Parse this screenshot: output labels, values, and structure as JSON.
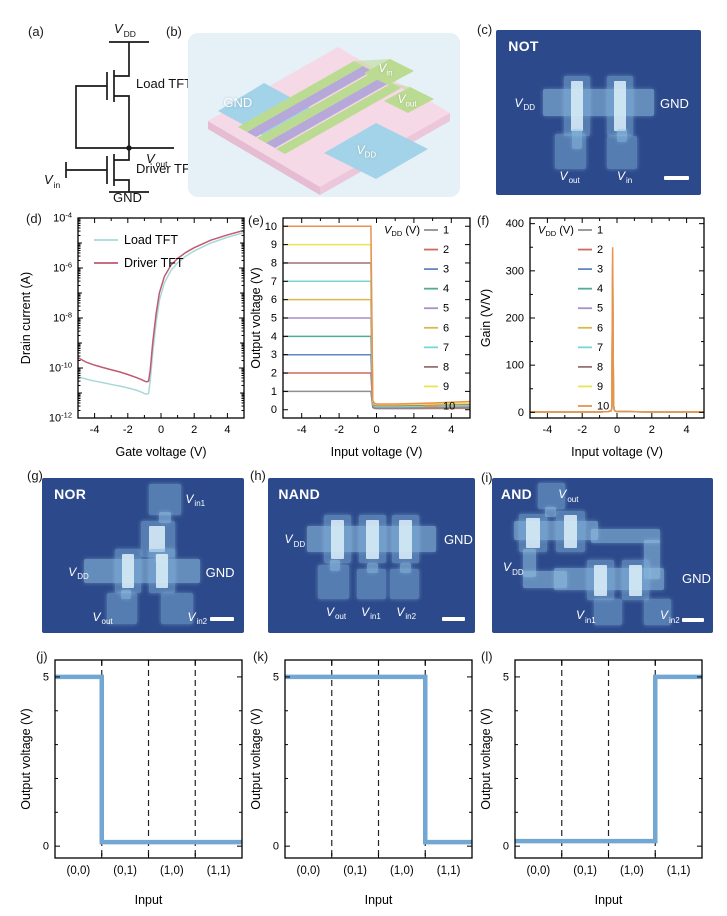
{
  "panels": {
    "a": {
      "tag": "(a)",
      "labels": {
        "vdd": {
          "m": "V",
          "s": "DD"
        },
        "load": "Load TFT",
        "vout": {
          "m": "V",
          "s": "out"
        },
        "driver": "Driver TFT",
        "vin": {
          "m": "V",
          "s": "in"
        },
        "gnd": "GND"
      }
    },
    "b": {
      "tag": "(b)",
      "labels": {
        "gnd": "GND",
        "vin": {
          "m": "V",
          "s": "in"
        },
        "vout": {
          "m": "V",
          "s": "out"
        },
        "vdd": {
          "m": "V",
          "s": "DD"
        }
      }
    },
    "c": {
      "tag": "(c)",
      "title": "NOT",
      "labels": {
        "vdd": {
          "m": "V",
          "s": "DD"
        },
        "gnd": "GND",
        "vout": {
          "m": "V",
          "s": "out"
        },
        "vin": {
          "m": "V",
          "s": "in"
        }
      }
    },
    "d": {
      "tag": "(d)"
    },
    "e": {
      "tag": "(e)"
    },
    "f": {
      "tag": "(f)"
    },
    "g": {
      "tag": "(g)",
      "title": "NOR",
      "labels": {
        "vin1": {
          "m": "V",
          "s": "in1"
        },
        "vdd": {
          "m": "V",
          "s": "DD"
        },
        "gnd": "GND",
        "vout": {
          "m": "V",
          "s": "out"
        },
        "vin2": {
          "m": "V",
          "s": "in2"
        }
      }
    },
    "h": {
      "tag": "(h)",
      "title": "NAND",
      "labels": {
        "vdd": {
          "m": "V",
          "s": "DD"
        },
        "gnd": "GND",
        "vout": {
          "m": "V",
          "s": "out"
        },
        "vin1": {
          "m": "V",
          "s": "in1"
        },
        "vin2": {
          "m": "V",
          "s": "in2"
        }
      }
    },
    "i": {
      "tag": "(i)",
      "title": "AND",
      "labels": {
        "vout": {
          "m": "V",
          "s": "out"
        },
        "vdd": {
          "m": "V",
          "s": "DD"
        },
        "gnd": "GND",
        "vin1": {
          "m": "V",
          "s": "in1"
        },
        "vin2": {
          "m": "V",
          "s": "in2"
        }
      }
    },
    "j": {
      "tag": "(j)"
    },
    "k": {
      "tag": "(k)"
    },
    "l": {
      "tag": "(l)"
    }
  },
  "chart_data": [
    {
      "id": "d",
      "type": "line",
      "logy": true,
      "xlabel": "Gate voltage (V)",
      "ylabel": "Drain current (A)",
      "xlim": [
        -5,
        5
      ],
      "xticks": [
        -4,
        -2,
        0,
        2,
        4
      ],
      "xminor": [
        -5,
        -3,
        -1,
        1,
        3,
        5
      ],
      "ylim_exp": [
        -12,
        -4
      ],
      "ytick_exps": [
        -4,
        -6,
        -8,
        -10,
        -12
      ],
      "legend": {
        "pos": "series"
      },
      "x": [
        -5,
        -4.5,
        -4,
        -3.5,
        -3,
        -2.5,
        -2,
        -1.5,
        -1.2,
        -1,
        -0.85,
        -0.75,
        -0.65,
        -0.5,
        -0.3,
        -0.1,
        0.2,
        0.6,
        1,
        1.5,
        2,
        3,
        4,
        5
      ],
      "series": [
        {
          "name": "Load TFT",
          "color": "#a8d8da",
          "y": [
            4.5e-11,
            3.6e-11,
            3e-11,
            2.6e-11,
            2.2e-11,
            1.9e-11,
            1.6e-11,
            1.3e-11,
            1.1e-11,
            9.5e-12,
            9e-12,
            9.5e-12,
            3e-11,
            4e-10,
            6e-09,
            5e-08,
            2.5e-07,
            8e-07,
            1.6e-06,
            3e-06,
            4.8e-06,
            1e-05,
            1.7e-05,
            2.6e-05
          ]
        },
        {
          "name": "Driver TFT",
          "color": "#bf5a70",
          "y": [
            2.6e-10,
            1.7e-10,
            1.3e-10,
            1.05e-10,
            8.5e-11,
            7e-11,
            5.5e-11,
            4.2e-11,
            3.5e-11,
            3e-11,
            2.8e-11,
            3e-11,
            8e-11,
            1e-09,
            1.4e-08,
            1e-07,
            4.5e-07,
            1.3e-06,
            2.4e-06,
            4.2e-06,
            6.5e-06,
            1.3e-05,
            2.1e-05,
            3.2e-05
          ]
        }
      ]
    },
    {
      "id": "e",
      "type": "line",
      "xlabel": "Input voltage (V)",
      "ylabel": "Output voltage (V)",
      "xlim": [
        -5,
        5
      ],
      "xticks": [
        -4,
        -2,
        0,
        2,
        4
      ],
      "xminor": [
        -5,
        -3,
        -1,
        1,
        3,
        5
      ],
      "ylim": [
        -0.45,
        10.45
      ],
      "yticks": [
        0,
        1,
        2,
        3,
        4,
        5,
        6,
        7,
        8,
        9,
        10
      ],
      "legend": {
        "pos": "right",
        "title": {
          "main": "V",
          "sub": "DD",
          "rest": " (V)"
        }
      },
      "x": [
        -5,
        -4,
        -3,
        -2,
        -1,
        -0.6,
        -0.45,
        -0.35,
        -0.3,
        -0.25,
        -0.2,
        -0.1,
        0,
        0.5,
        1,
        2,
        3,
        4,
        5
      ],
      "series": [
        {
          "name": "1",
          "color": "#909090",
          "y": [
            1,
            1,
            1,
            1,
            1,
            1,
            1,
            1,
            1,
            0.55,
            0.12,
            0.07,
            0.06,
            0.06,
            0.06,
            0.06,
            0.07,
            0.07,
            0.08
          ]
        },
        {
          "name": "2",
          "color": "#cf6a5d",
          "y": [
            2,
            2,
            2,
            2,
            2,
            2,
            2,
            2,
            2,
            1.1,
            0.16,
            0.1,
            0.09,
            0.09,
            0.09,
            0.1,
            0.1,
            0.11,
            0.12
          ]
        },
        {
          "name": "3",
          "color": "#6286c2",
          "y": [
            3,
            3,
            3,
            3,
            3,
            3,
            3,
            3,
            3,
            1.65,
            0.2,
            0.13,
            0.11,
            0.11,
            0.11,
            0.12,
            0.13,
            0.14,
            0.15
          ]
        },
        {
          "name": "4",
          "color": "#52ab96",
          "y": [
            4,
            4,
            4,
            4,
            4,
            4,
            4,
            4,
            4,
            2.2,
            0.24,
            0.15,
            0.13,
            0.13,
            0.13,
            0.14,
            0.15,
            0.16,
            0.17
          ]
        },
        {
          "name": "5",
          "color": "#a78fca",
          "y": [
            5,
            5,
            5,
            5,
            5,
            5,
            5,
            5,
            5,
            2.75,
            0.28,
            0.17,
            0.15,
            0.15,
            0.15,
            0.16,
            0.17,
            0.18,
            0.2
          ]
        },
        {
          "name": "6",
          "color": "#d7b94e",
          "y": [
            6,
            6,
            6,
            6,
            6,
            6,
            6,
            6,
            6,
            3.3,
            0.32,
            0.2,
            0.18,
            0.18,
            0.18,
            0.19,
            0.2,
            0.22,
            0.23
          ]
        },
        {
          "name": "7",
          "color": "#7ad6d6",
          "y": [
            7,
            7,
            7,
            7,
            7,
            7,
            7,
            7,
            7,
            3.85,
            0.36,
            0.22,
            0.2,
            0.2,
            0.2,
            0.21,
            0.23,
            0.25,
            0.26
          ]
        },
        {
          "name": "8",
          "color": "#9b7070",
          "y": [
            8,
            8,
            8,
            8,
            8,
            8,
            8,
            8,
            8,
            4.4,
            0.4,
            0.26,
            0.24,
            0.23,
            0.23,
            0.25,
            0.27,
            0.29,
            0.3
          ]
        },
        {
          "name": "9",
          "color": "#e9e455",
          "y": [
            9,
            9,
            9,
            9,
            9,
            9,
            9,
            9,
            9,
            4.95,
            0.45,
            0.3,
            0.28,
            0.27,
            0.27,
            0.29,
            0.31,
            0.33,
            0.35
          ]
        },
        {
          "name": "10",
          "color": "#e8924f",
          "y": [
            10,
            10,
            10,
            10,
            10,
            10,
            10,
            10,
            10,
            5.5,
            0.5,
            0.35,
            0.32,
            0.31,
            0.31,
            0.34,
            0.37,
            0.41,
            0.45
          ]
        }
      ]
    },
    {
      "id": "f",
      "type": "line",
      "xlabel": "Input voltage (V)",
      "ylabel": "Gain (V/V)",
      "xlim": [
        -5,
        5
      ],
      "xticks": [
        -4,
        -2,
        0,
        2,
        4
      ],
      "xminor": [
        -5,
        -3,
        -1,
        1,
        3,
        5
      ],
      "ylim": [
        -12,
        412
      ],
      "yticks": [
        0,
        100,
        200,
        300,
        400
      ],
      "yminor": [
        50,
        150,
        250,
        350
      ],
      "legend": {
        "pos": "left",
        "title": {
          "main": "V",
          "sub": "DD",
          "rest": " (V)"
        }
      },
      "x": [
        -5,
        -3,
        -1,
        -0.5,
        -0.35,
        -0.3,
        -0.25,
        -0.2,
        -0.15,
        -0.05,
        0.5,
        2,
        5
      ],
      "series": [
        {
          "name": "1",
          "color": "#909090",
          "y": [
            1,
            1,
            1,
            1.5,
            3,
            8,
            55,
            16,
            4,
            2,
            1.5,
            1,
            1
          ]
        },
        {
          "name": "2",
          "color": "#cf6a5d",
          "y": [
            1,
            1,
            1,
            1.5,
            3,
            8,
            110,
            16,
            4,
            2,
            1.5,
            1,
            1
          ]
        },
        {
          "name": "3",
          "color": "#6286c2",
          "y": [
            1,
            1,
            1,
            1.5,
            3,
            8,
            160,
            16,
            4,
            2,
            1.5,
            1,
            1
          ]
        },
        {
          "name": "4",
          "color": "#52ab96",
          "y": [
            1,
            1,
            1,
            1.5,
            3,
            8,
            200,
            16,
            4,
            2,
            1.5,
            1,
            1
          ]
        },
        {
          "name": "5",
          "color": "#a78fca",
          "y": [
            1,
            1,
            1,
            1.5,
            3,
            8,
            240,
            16,
            4,
            2,
            1.5,
            1,
            1
          ]
        },
        {
          "name": "6",
          "color": "#d7b94e",
          "y": [
            1,
            1,
            1,
            1.5,
            3,
            8,
            270,
            16,
            4,
            2,
            1.5,
            1,
            1
          ]
        },
        {
          "name": "7",
          "color": "#7ad6d6",
          "y": [
            1,
            1,
            1,
            1.5,
            3,
            8,
            295,
            16,
            4,
            2,
            1.5,
            1,
            1
          ]
        },
        {
          "name": "8",
          "color": "#9b7070",
          "y": [
            1,
            1,
            1,
            1.5,
            3,
            8,
            315,
            16,
            4,
            2,
            1.5,
            1,
            1
          ]
        },
        {
          "name": "9",
          "color": "#e9e455",
          "y": [
            1,
            1,
            1,
            1.5,
            3,
            8,
            335,
            16,
            4,
            2,
            1.5,
            1,
            1
          ]
        },
        {
          "name": "10",
          "color": "#e8924f",
          "y": [
            1,
            1,
            1,
            1.5,
            3,
            8,
            350,
            16,
            4,
            2,
            1.5,
            1,
            1
          ]
        }
      ]
    },
    {
      "id": "j",
      "type": "step",
      "color": "#72a7d3",
      "xlabel": "Input",
      "ylabel": "Output voltage (V)",
      "categories": [
        "(0,0)",
        "(0,1)",
        "(1,0)",
        "(1,1)"
      ],
      "values": [
        5,
        0.12,
        0.12,
        0.12
      ],
      "ylim": [
        -0.35,
        5.5
      ],
      "yticks": [
        0,
        5
      ],
      "yminor": [
        1,
        2,
        3,
        4
      ]
    },
    {
      "id": "k",
      "type": "step",
      "color": "#72a7d3",
      "xlabel": "Input",
      "ylabel": "Output voltage (V)",
      "categories": [
        "(0,0)",
        "(0,1)",
        "(1,0)",
        "(1,1)"
      ],
      "values": [
        5,
        5,
        5,
        0.12
      ],
      "ylim": [
        -0.35,
        5.5
      ],
      "yticks": [
        0,
        5
      ],
      "yminor": [
        1,
        2,
        3,
        4
      ]
    },
    {
      "id": "l",
      "type": "step",
      "color": "#72a7d3",
      "xlabel": "Input",
      "ylabel": "Output voltage (V)",
      "categories": [
        "(0,0)",
        "(0,1)",
        "(1,0)",
        "(1,1)"
      ],
      "values": [
        0.15,
        0.15,
        0.15,
        5
      ],
      "ylim": [
        -0.35,
        5.5
      ],
      "yticks": [
        0,
        5
      ],
      "yminor": [
        1,
        2,
        3,
        4
      ]
    }
  ]
}
